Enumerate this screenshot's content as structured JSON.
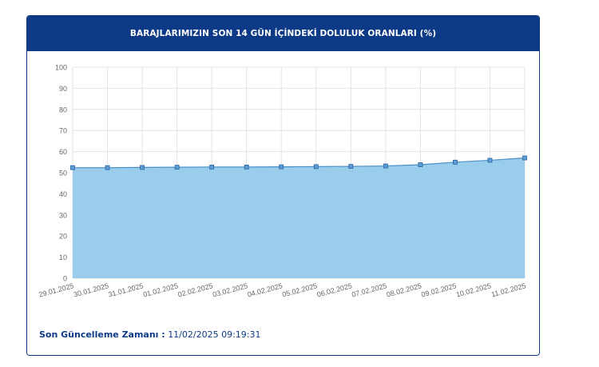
{
  "header": {
    "title": "BARAJLARIMIZIN SON 14 GÜN İÇİNDEKİ DOLULUK ORANLARI (%)"
  },
  "footer": {
    "label": "Son Güncelleme Zamanı :",
    "value": "11/02/2025 09:19:31"
  },
  "colors": {
    "header_bg": "#0d3a86",
    "area_fill": "#99cdeb",
    "line": "#4a90c8",
    "marker_fill": "#5b9fd6",
    "marker_stroke": "#2b5f9e",
    "grid": "#e3e3e3"
  },
  "chart_data": {
    "type": "area",
    "categories": [
      "29.01.2025",
      "30.01.2025",
      "31.01.2025",
      "01.02.2025",
      "02.02.2025",
      "03.02.2025",
      "04.02.2025",
      "05.02.2025",
      "06.02.2025",
      "07.02.2025",
      "08.02.2025",
      "09.02.2025",
      "10.02.2025",
      "11.02.2025"
    ],
    "series": [
      {
        "values": [
          52.4,
          52.4,
          52.5,
          52.6,
          52.7,
          52.7,
          52.8,
          52.9,
          53.0,
          53.2,
          53.8,
          55.0,
          55.9,
          57.0
        ]
      }
    ],
    "ylim": [
      0,
      100
    ],
    "yticks": [
      0,
      10,
      20,
      30,
      40,
      50,
      60,
      70,
      80,
      90,
      100
    ],
    "grid": true,
    "legend": "none"
  }
}
